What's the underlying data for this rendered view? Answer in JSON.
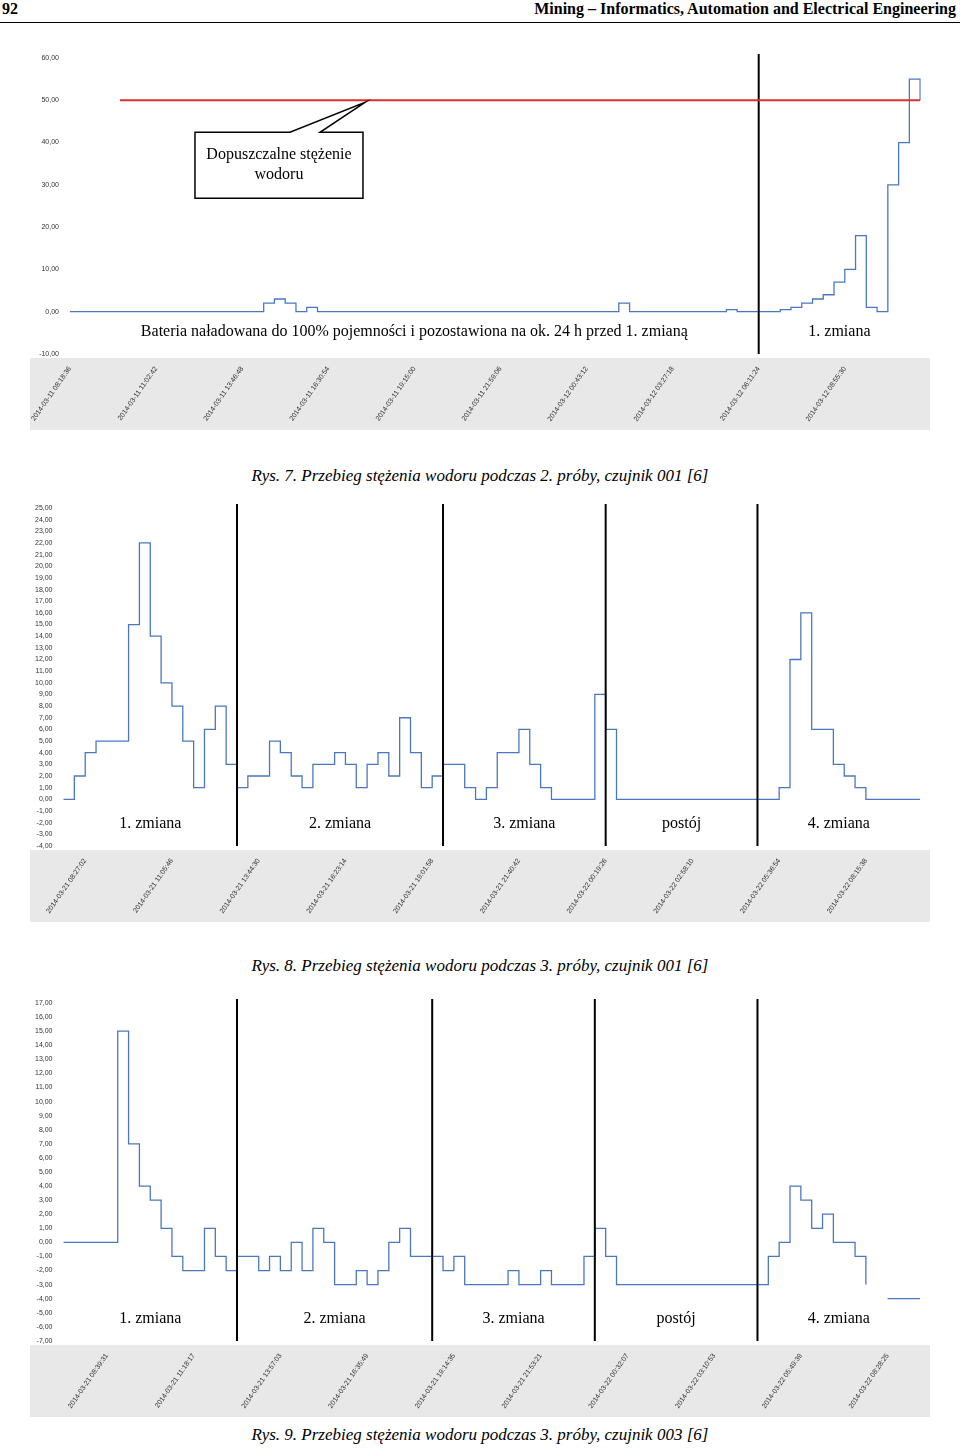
{
  "header": {
    "page": "92",
    "journal": "Mining – Informatics, Automation and Electrical Engineering"
  },
  "chart_data": [
    {
      "type": "line",
      "title": "Rys. 7. Przebieg stężenia wodoru podczas 2. próby, czujnik 001 [6]",
      "categories": [
        "2014-03-11 08:18:36",
        null,
        null,
        null,
        null,
        null,
        null,
        null,
        "2014-03-11 11:02:42",
        null,
        null,
        null,
        null,
        null,
        null,
        null,
        "2014-03-11 13:46:48",
        null,
        null,
        null,
        null,
        null,
        null,
        null,
        "2014-03-11 16:30:54",
        null,
        null,
        null,
        null,
        null,
        null,
        null,
        "2014-03-11 19:15:00",
        null,
        null,
        null,
        null,
        null,
        null,
        null,
        "2014-03-11 21:59:06",
        null,
        null,
        null,
        null,
        null,
        null,
        null,
        "2014-03-12 00:43:12",
        null,
        null,
        null,
        null,
        null,
        null,
        null,
        "2014-03-12 03:27:18",
        null,
        null,
        null,
        null,
        null,
        null,
        null,
        "2014-03-12 06:11:24",
        null,
        null,
        null,
        null,
        null,
        null,
        null,
        "2014-03-12 08:55:30",
        null,
        null,
        null,
        null,
        null,
        null,
        null
      ],
      "values": [
        0,
        0,
        0,
        0,
        0,
        0,
        0,
        0,
        0,
        0,
        0,
        0,
        0,
        0,
        0,
        0,
        0,
        0,
        2,
        3,
        2,
        0,
        1,
        0,
        0,
        0,
        0,
        0,
        0,
        0,
        0,
        0,
        0,
        0,
        0,
        0,
        0,
        0,
        0,
        0,
        0,
        0,
        0,
        0,
        0,
        0,
        0,
        0,
        0,
        0,
        0,
        2,
        0,
        0,
        0,
        0,
        0,
        0,
        0,
        0,
        0,
        0.5,
        0,
        0,
        0,
        0,
        0.5,
        1,
        2,
        3,
        4,
        7,
        10,
        18,
        1,
        0,
        30,
        40,
        55,
        50
      ],
      "color": "#4a78c0",
      "line_style": "stepped",
      "grid": false,
      "ylim": [
        -10,
        60
      ],
      "yticks": [
        {
          "value": -10,
          "label": "-10,00"
        },
        {
          "value": 0,
          "label": "0,00"
        },
        {
          "value": 10,
          "label": "10,00"
        },
        {
          "value": 20,
          "label": "20,00"
        },
        {
          "value": 30,
          "label": "30,00"
        },
        {
          "value": 40,
          "label": "40,00"
        },
        {
          "value": 50,
          "label": "50,00"
        },
        {
          "value": 60,
          "label": "60,00"
        }
      ],
      "threshold": {
        "value": 50,
        "label": "Dopuszczalne stężenie wodoru",
        "color": "#d9302c"
      },
      "shift_boundaries": [
        64
      ],
      "annotations": [
        "Bateria naładowana do 100% pojemności i pozostawiona na ok. 24 h przed 1. zmianą",
        "1. zmiana"
      ]
    },
    {
      "type": "line",
      "title": "Rys. 8. Przebieg stężenia wodoru podczas 3. próby, czujnik 001 [6]",
      "categories": [
        null,
        null,
        "2014-03-21 08:27:02",
        null,
        null,
        null,
        null,
        null,
        null,
        null,
        "2014-03-21 11:05:46",
        null,
        null,
        null,
        null,
        null,
        null,
        null,
        "2014-03-21 13:44:30",
        null,
        null,
        null,
        null,
        null,
        null,
        null,
        "2014-03-21 16:23:14",
        null,
        null,
        null,
        null,
        null,
        null,
        null,
        "2014-03-21 19:01:58",
        null,
        null,
        null,
        null,
        null,
        null,
        null,
        "2014-03-21 21:40:42",
        null,
        null,
        null,
        null,
        null,
        null,
        null,
        "2014-03-22 00:19:26",
        null,
        null,
        null,
        null,
        null,
        null,
        null,
        "2014-03-22 02:58:10",
        null,
        null,
        null,
        null,
        null,
        null,
        null,
        "2014-03-22 05:36:54",
        null,
        null,
        null,
        null,
        null,
        null,
        null,
        "2014-03-22 08:15:38",
        null,
        null,
        null,
        null,
        null
      ],
      "values": [
        0,
        2,
        4,
        5,
        5,
        5,
        15,
        22,
        14,
        10,
        8,
        5,
        1,
        6,
        8,
        3,
        1,
        2,
        2,
        5,
        4,
        2,
        1,
        3,
        3,
        4,
        3,
        1,
        3,
        4,
        2,
        7,
        4,
        1,
        2,
        3,
        3,
        1,
        0,
        1,
        4,
        4,
        6,
        3,
        1,
        0,
        0,
        0,
        0,
        9,
        6,
        0,
        0,
        0,
        0,
        0,
        0,
        0,
        0,
        0,
        0,
        0,
        0,
        0,
        0,
        0,
        1,
        12,
        16,
        6,
        6,
        3,
        2,
        1,
        0,
        0,
        0,
        0,
        0,
        0
      ],
      "color": "#4a78c0",
      "line_style": "stepped",
      "grid": false,
      "ylim": [
        -4,
        25
      ],
      "yticks": [
        {
          "value": -4,
          "label": "-4,00"
        },
        {
          "value": -3,
          "label": "-3,00"
        },
        {
          "value": -2,
          "label": "-2,00"
        },
        {
          "value": -1,
          "label": "-1,00"
        },
        {
          "value": 0,
          "label": "0,00"
        },
        {
          "value": 1,
          "label": "1,00"
        },
        {
          "value": 2,
          "label": "2,00"
        },
        {
          "value": 3,
          "label": "3,00"
        },
        {
          "value": 4,
          "label": "4,00"
        },
        {
          "value": 5,
          "label": "5,00"
        },
        {
          "value": 6,
          "label": "6,00"
        },
        {
          "value": 7,
          "label": "7,00"
        },
        {
          "value": 8,
          "label": "8,00"
        },
        {
          "value": 9,
          "label": "9,00"
        },
        {
          "value": 10,
          "label": "10,00"
        },
        {
          "value": 11,
          "label": "11,00"
        },
        {
          "value": 12,
          "label": "12,00"
        },
        {
          "value": 13,
          "label": "13,00"
        },
        {
          "value": 14,
          "label": "14,00"
        },
        {
          "value": 15,
          "label": "15,00"
        },
        {
          "value": 16,
          "label": "16,00"
        },
        {
          "value": 17,
          "label": "17,00"
        },
        {
          "value": 18,
          "label": "18,00"
        },
        {
          "value": 19,
          "label": "19,00"
        },
        {
          "value": 20,
          "label": "20,00"
        },
        {
          "value": 21,
          "label": "21,00"
        },
        {
          "value": 22,
          "label": "22,00"
        },
        {
          "value": 23,
          "label": "23,00"
        },
        {
          "value": 24,
          "label": "24,00"
        },
        {
          "value": 25,
          "label": "25,00"
        }
      ],
      "shift_boundaries": [
        16,
        35,
        50,
        64
      ],
      "annotations": [
        "1. zmiana",
        "2. zmiana",
        "3. zmiana",
        "postój",
        "4. zmiana"
      ]
    },
    {
      "type": "line",
      "title": "Rys. 9. Przebieg stężenia wodoru podczas 3. próby, czujnik 003 [6]",
      "categories": [
        null,
        null,
        null,
        null,
        "2014-03-21 08:39:31",
        null,
        null,
        null,
        null,
        null,
        null,
        null,
        "2014-03-21 11:18:17",
        null,
        null,
        null,
        null,
        null,
        null,
        null,
        "2014-03-21 13:57:03",
        null,
        null,
        null,
        null,
        null,
        null,
        null,
        "2014-03-21 16:35:49",
        null,
        null,
        null,
        null,
        null,
        null,
        null,
        "2014-03-21 19:14:35",
        null,
        null,
        null,
        null,
        null,
        null,
        null,
        "2014-03-21 21:53:21",
        null,
        null,
        null,
        null,
        null,
        null,
        null,
        "2014-03-22 00:32:07",
        null,
        null,
        null,
        null,
        null,
        null,
        null,
        "2014-03-22 03:10:53",
        null,
        null,
        null,
        null,
        null,
        null,
        null,
        "2014-03-22 05:49:39",
        null,
        null,
        null,
        null,
        null,
        null,
        null,
        "2014-03-22 08:28:25",
        null,
        null,
        null
      ],
      "values": [
        0,
        0,
        0,
        0,
        0,
        15,
        7,
        4,
        3,
        1,
        -1,
        -2,
        -2,
        1,
        -1,
        -2,
        -1,
        -1,
        -2,
        -1,
        -2,
        0,
        -2,
        1,
        0,
        -3,
        -3,
        -2,
        -3,
        -2,
        0,
        1,
        -1,
        -1,
        -1,
        -2,
        -1,
        -3,
        -3,
        -3,
        -3,
        -2,
        -3,
        -3,
        -2,
        -3,
        -3,
        -3,
        -1,
        1,
        -1,
        -3,
        -3,
        -3,
        -3,
        -3,
        -3,
        -3,
        -3,
        -3,
        -3,
        -3,
        -3,
        -3,
        -3,
        -1,
        0,
        4,
        3,
        1,
        2,
        0,
        0,
        -1,
        -3,
        null,
        -4,
        -4,
        -4,
        -4
      ],
      "color": "#4a78c0",
      "line_style": "stepped",
      "grid": false,
      "ylim": [
        -7,
        17
      ],
      "yticks": [
        {
          "value": -7,
          "label": "-7,00"
        },
        {
          "value": -6,
          "label": "-6,00"
        },
        {
          "value": -5,
          "label": "-5,00"
        },
        {
          "value": -4,
          "label": "-4,00"
        },
        {
          "value": -3,
          "label": "-3,00"
        },
        {
          "value": -2,
          "label": "-2,00"
        },
        {
          "value": -1,
          "label": "-1,00"
        },
        {
          "value": 0,
          "label": "0,00"
        },
        {
          "value": 1,
          "label": "1,00"
        },
        {
          "value": 2,
          "label": "2,00"
        },
        {
          "value": 3,
          "label": "3,00"
        },
        {
          "value": 4,
          "label": "4,00"
        },
        {
          "value": 5,
          "label": "5,00"
        },
        {
          "value": 6,
          "label": "6,00"
        },
        {
          "value": 7,
          "label": "7,00"
        },
        {
          "value": 8,
          "label": "8,00"
        },
        {
          "value": 9,
          "label": "9,00"
        },
        {
          "value": 10,
          "label": "10,00"
        },
        {
          "value": 11,
          "label": "11,00"
        },
        {
          "value": 12,
          "label": "12,00"
        },
        {
          "value": 13,
          "label": "13,00"
        },
        {
          "value": 14,
          "label": "14,00"
        },
        {
          "value": 15,
          "label": "15,00"
        },
        {
          "value": 16,
          "label": "16,00"
        },
        {
          "value": 17,
          "label": "17,00"
        }
      ],
      "shift_boundaries": [
        16,
        34,
        49,
        64
      ],
      "annotations": [
        "1. zmiana",
        "2. zmiana",
        "3. zmiana",
        "postój",
        "4. zmiana"
      ]
    }
  ]
}
